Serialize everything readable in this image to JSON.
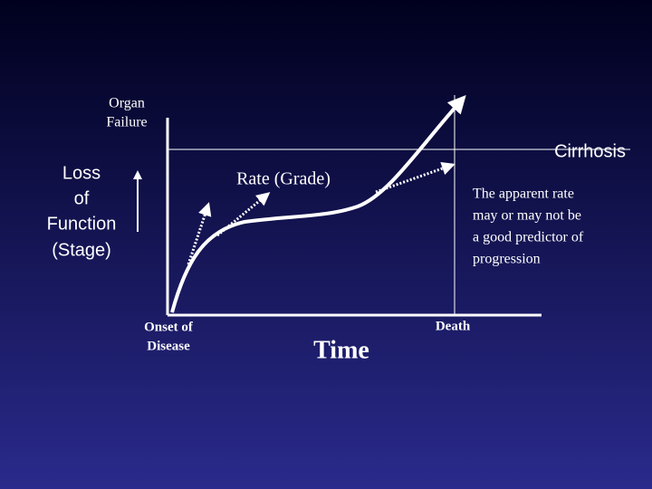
{
  "labels": {
    "organ_failure": [
      "Organ",
      "Failure"
    ],
    "stage": [
      "Loss",
      "of",
      "Function",
      "(Stage)"
    ],
    "rate": "Rate (Grade)",
    "cirrhosis": "Cirrhosis",
    "note": [
      "The apparent rate",
      "may or may not be",
      "a good predictor of",
      "progression"
    ],
    "onset": [
      "Onset of",
      "Disease"
    ],
    "time": "Time",
    "death": "Death"
  }
}
